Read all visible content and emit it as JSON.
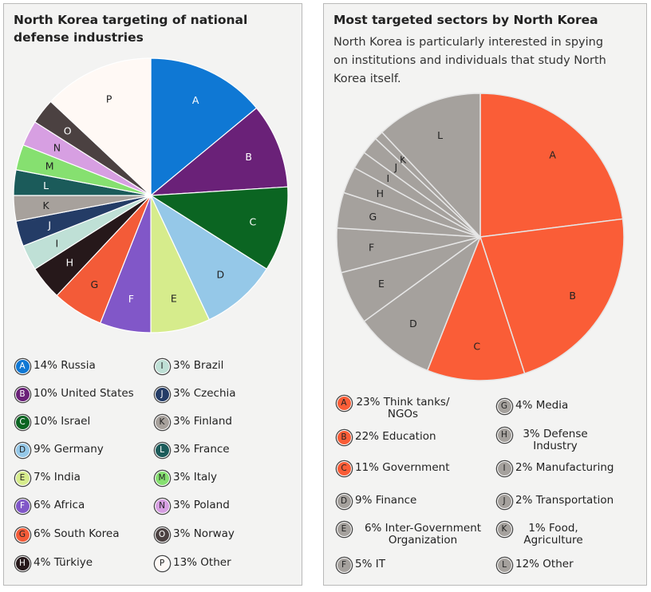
{
  "chart_data": [
    {
      "type": "pie",
      "title": "North Korea targeting of national defense industries",
      "slices": [
        {
          "letter": "A",
          "value": 14,
          "label": "14% Russia",
          "color": "#0f78d4",
          "text_color": "#ffffff"
        },
        {
          "letter": "B",
          "value": 10,
          "label": "10% United States",
          "color": "#6a2178",
          "text_color": "#ffffff"
        },
        {
          "letter": "C",
          "value": 10,
          "label": "10% Israel",
          "color": "#0b6522",
          "text_color": "#ffffff"
        },
        {
          "letter": "D",
          "value": 9,
          "label": "9% Germany",
          "color": "#95c8e8",
          "text_color": "#222222"
        },
        {
          "letter": "E",
          "value": 7,
          "label": "7% India",
          "color": "#d6ec8c",
          "text_color": "#222222"
        },
        {
          "letter": "F",
          "value": 6,
          "label": "6% Africa",
          "color": "#8157c8",
          "text_color": "#ffffff"
        },
        {
          "letter": "G",
          "value": 6,
          "label": "6% South Korea",
          "color": "#f35b38",
          "text_color": "#222222"
        },
        {
          "letter": "H",
          "value": 4,
          "label": "4% Türkiye",
          "color": "#26181a",
          "text_color": "#ffffff"
        },
        {
          "letter": "I",
          "value": 3,
          "label": "3% Brazil",
          "color": "#bfe0d6",
          "text_color": "#222222"
        },
        {
          "letter": "J",
          "value": 3,
          "label": "3% Czechia",
          "color": "#243c66",
          "text_color": "#ffffff"
        },
        {
          "letter": "K",
          "value": 3,
          "label": "3% Finland",
          "color": "#a7a19c",
          "text_color": "#222222"
        },
        {
          "letter": "L",
          "value": 3,
          "label": "3% France",
          "color": "#1b5b5a",
          "text_color": "#ffffff"
        },
        {
          "letter": "M",
          "value": 3,
          "label": "3% Italy",
          "color": "#86e070",
          "text_color": "#222222"
        },
        {
          "letter": "N",
          "value": 3,
          "label": "3% Poland",
          "color": "#d79fe2",
          "text_color": "#222222"
        },
        {
          "letter": "O",
          "value": 3,
          "label": "3% Norway",
          "color": "#4b4141",
          "text_color": "#ffffff"
        },
        {
          "letter": "P",
          "value": 13,
          "label": "13% Other",
          "color": "#fff9f5",
          "text_color": "#222222"
        }
      ]
    },
    {
      "type": "pie",
      "title": "Most targeted sectors by North Korea",
      "subtitle": "North Korea is particularly interested in spying on institutions and individuals that study North Korea itself.",
      "slices": [
        {
          "letter": "A",
          "value": 23,
          "label": "23% Think tanks/ NGOs",
          "color": "#fa5d37",
          "text_color": "#222222"
        },
        {
          "letter": "B",
          "value": 22,
          "label": "22% Education",
          "color": "#fa5d37",
          "text_color": "#222222"
        },
        {
          "letter": "C",
          "value": 11,
          "label": "11% Government",
          "color": "#fa5d37",
          "text_color": "#222222"
        },
        {
          "letter": "D",
          "value": 9,
          "label": "9% Finance",
          "color": "#a5a19d",
          "text_color": "#222222"
        },
        {
          "letter": "E",
          "value": 6,
          "label": "6% Inter-Government Organization",
          "color": "#a5a19d",
          "text_color": "#222222"
        },
        {
          "letter": "F",
          "value": 5,
          "label": "5% IT",
          "color": "#a5a19d",
          "text_color": "#222222"
        },
        {
          "letter": "G",
          "value": 4,
          "label": "4% Media",
          "color": "#a5a19d",
          "text_color": "#222222"
        },
        {
          "letter": "H",
          "value": 3,
          "label": "3% Defense Industry",
          "color": "#a5a19d",
          "text_color": "#222222"
        },
        {
          "letter": "I",
          "value": 2,
          "label": "2% Manufacturing",
          "color": "#a5a19d",
          "text_color": "#222222"
        },
        {
          "letter": "J",
          "value": 2,
          "label": "2% Transportation",
          "color": "#a5a19d",
          "text_color": "#222222"
        },
        {
          "letter": "K",
          "value": 1,
          "label": "1% Food, Agriculture",
          "color": "#a5a19d",
          "text_color": "#222222"
        },
        {
          "letter": "L",
          "value": 12,
          "label": "12% Other",
          "color": "#a5a19d",
          "text_color": "#222222"
        }
      ]
    }
  ]
}
